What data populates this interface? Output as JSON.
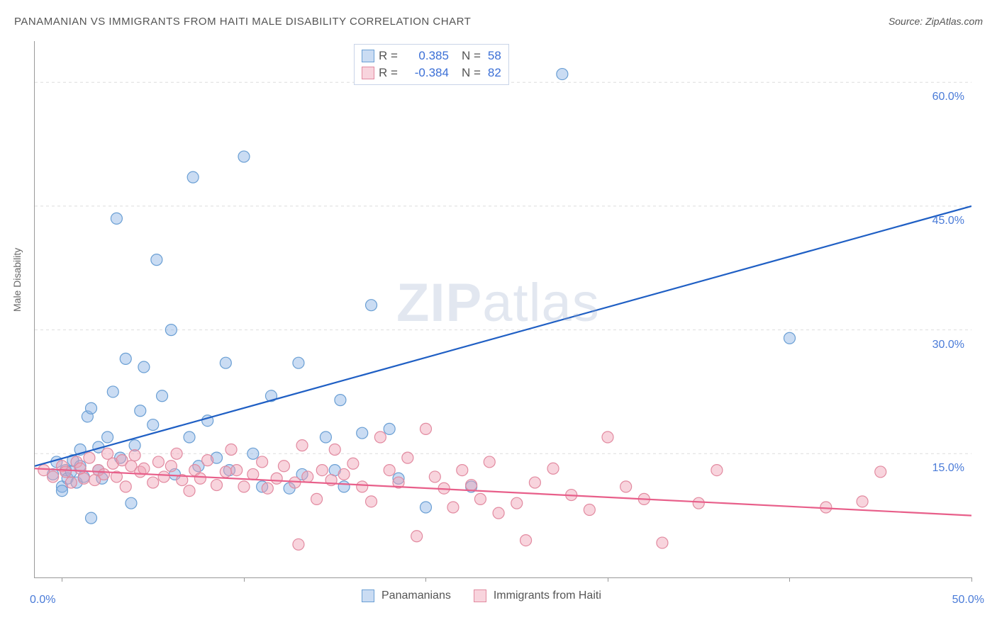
{
  "title": "PANAMANIAN VS IMMIGRANTS FROM HAITI MALE DISABILITY CORRELATION CHART",
  "source_label": "Source: ZipAtlas.com",
  "y_axis_label": "Male Disability",
  "watermark": {
    "zip": "ZIP",
    "atlas": "atlas"
  },
  "chart": {
    "type": "scatter-with-regression",
    "x_range": [
      -1.5,
      50
    ],
    "y_range": [
      0,
      65
    ],
    "grid_y_values": [
      15,
      30,
      45,
      60
    ],
    "grid_color": "#dddddd",
    "axis_color": "#999999",
    "background_color": "#ffffff",
    "y_tick_labels": [
      "15.0%",
      "30.0%",
      "45.0%",
      "60.0%"
    ],
    "y_tick_label_color": "#4a7bd8",
    "x_tick_values": [
      0,
      10,
      20,
      30,
      40,
      50
    ],
    "x_tick_labels": {
      "0": "0.0%",
      "50": "50.0%"
    },
    "marker_radius": 8,
    "marker_stroke_width": 1.2,
    "line_width": 2.2,
    "series": [
      {
        "name": "Panamanians",
        "fill_color": "rgba(137,177,228,0.45)",
        "stroke_color": "#6a9fd4",
        "line_color": "#1f5fc4",
        "R": "0.385",
        "N": "58",
        "regression": {
          "x1": -1.5,
          "y1": 13.5,
          "x2": 50,
          "y2": 45.0
        },
        "points": [
          [
            -0.5,
            12.5
          ],
          [
            -0.3,
            14
          ],
          [
            0,
            11
          ],
          [
            0,
            10.5
          ],
          [
            0.2,
            13
          ],
          [
            0.3,
            12
          ],
          [
            0.5,
            12.8
          ],
          [
            0.6,
            14.2
          ],
          [
            0.8,
            11.5
          ],
          [
            1,
            13.5
          ],
          [
            1,
            15.5
          ],
          [
            1.2,
            12.2
          ],
          [
            1.4,
            19.5
          ],
          [
            1.6,
            20.5
          ],
          [
            1.6,
            7.2
          ],
          [
            2,
            15.8
          ],
          [
            2,
            13
          ],
          [
            2.2,
            12
          ],
          [
            2.5,
            17
          ],
          [
            2.8,
            22.5
          ],
          [
            3,
            43.5
          ],
          [
            3.2,
            14.5
          ],
          [
            3.5,
            26.5
          ],
          [
            3.8,
            9
          ],
          [
            4,
            16
          ],
          [
            4.3,
            20.2
          ],
          [
            4.5,
            25.5
          ],
          [
            5,
            18.5
          ],
          [
            5.2,
            38.5
          ],
          [
            5.5,
            22
          ],
          [
            6,
            30
          ],
          [
            6.2,
            12.5
          ],
          [
            7,
            17
          ],
          [
            7.2,
            48.5
          ],
          [
            7.5,
            13.5
          ],
          [
            8,
            19
          ],
          [
            8.5,
            14.5
          ],
          [
            9,
            26
          ],
          [
            9.2,
            13
          ],
          [
            10,
            51
          ],
          [
            10.5,
            15
          ],
          [
            11,
            11
          ],
          [
            11.5,
            22
          ],
          [
            12.5,
            10.8
          ],
          [
            13,
            26
          ],
          [
            13.2,
            12.5
          ],
          [
            14.5,
            17
          ],
          [
            15,
            13
          ],
          [
            15.3,
            21.5
          ],
          [
            15.5,
            11
          ],
          [
            16.5,
            17.5
          ],
          [
            17,
            33
          ],
          [
            18,
            18
          ],
          [
            18.5,
            12
          ],
          [
            20,
            8.5
          ],
          [
            22.5,
            11
          ],
          [
            27.5,
            61
          ],
          [
            40,
            29
          ]
        ]
      },
      {
        "name": "Immigrants from Haiti",
        "fill_color": "rgba(240,160,180,0.45)",
        "stroke_color": "#e28aa0",
        "line_color": "#e85f8a",
        "R": "-0.384",
        "N": "82",
        "regression": {
          "x1": -1.5,
          "y1": 13.2,
          "x2": 50,
          "y2": 7.5
        },
        "points": [
          [
            -1,
            13
          ],
          [
            -0.5,
            12.2
          ],
          [
            0,
            13.5
          ],
          [
            0.2,
            12.8
          ],
          [
            0.5,
            11.5
          ],
          [
            0.8,
            14
          ],
          [
            1,
            13.2
          ],
          [
            1.2,
            12
          ],
          [
            1.5,
            14.5
          ],
          [
            1.8,
            11.8
          ],
          [
            2,
            13
          ],
          [
            2.3,
            12.5
          ],
          [
            2.5,
            15
          ],
          [
            2.8,
            13.8
          ],
          [
            3,
            12.2
          ],
          [
            3.3,
            14.2
          ],
          [
            3.5,
            11
          ],
          [
            3.8,
            13.5
          ],
          [
            4,
            14.8
          ],
          [
            4.3,
            12.8
          ],
          [
            4.5,
            13.2
          ],
          [
            5,
            11.5
          ],
          [
            5.3,
            14
          ],
          [
            5.6,
            12.2
          ],
          [
            6,
            13.5
          ],
          [
            6.3,
            15
          ],
          [
            6.6,
            11.8
          ],
          [
            7,
            10.5
          ],
          [
            7.3,
            13
          ],
          [
            7.6,
            12
          ],
          [
            8,
            14.2
          ],
          [
            8.5,
            11.2
          ],
          [
            9,
            12.8
          ],
          [
            9.3,
            15.5
          ],
          [
            9.6,
            13
          ],
          [
            10,
            11
          ],
          [
            10.5,
            12.5
          ],
          [
            11,
            14
          ],
          [
            11.3,
            10.8
          ],
          [
            11.8,
            12
          ],
          [
            12.2,
            13.5
          ],
          [
            12.8,
            11.5
          ],
          [
            13,
            4
          ],
          [
            13.2,
            16
          ],
          [
            13.5,
            12.2
          ],
          [
            14,
            9.5
          ],
          [
            14.3,
            13
          ],
          [
            14.8,
            11.8
          ],
          [
            15,
            15.5
          ],
          [
            15.5,
            12.5
          ],
          [
            16,
            13.8
          ],
          [
            16.5,
            11
          ],
          [
            17,
            9.2
          ],
          [
            17.5,
            17
          ],
          [
            18,
            13
          ],
          [
            18.5,
            11.5
          ],
          [
            19,
            14.5
          ],
          [
            19.5,
            5
          ],
          [
            20,
            18
          ],
          [
            20.5,
            12.2
          ],
          [
            21,
            10.8
          ],
          [
            21.5,
            8.5
          ],
          [
            22,
            13
          ],
          [
            22.5,
            11.2
          ],
          [
            23,
            9.5
          ],
          [
            23.5,
            14
          ],
          [
            24,
            7.8
          ],
          [
            25,
            9
          ],
          [
            25.5,
            4.5
          ],
          [
            26,
            11.5
          ],
          [
            27,
            13.2
          ],
          [
            28,
            10
          ],
          [
            29,
            8.2
          ],
          [
            30,
            17
          ],
          [
            31,
            11
          ],
          [
            32,
            9.5
          ],
          [
            33,
            4.2
          ],
          [
            35,
            9
          ],
          [
            36,
            13
          ],
          [
            44,
            9.2
          ],
          [
            45,
            12.8
          ],
          [
            42,
            8.5
          ]
        ]
      }
    ]
  },
  "legend_top": {
    "r_label": "R =",
    "n_label": "N ="
  },
  "legend_bottom": {
    "series1": "Panamanians",
    "series2": "Immigrants from Haiti"
  }
}
